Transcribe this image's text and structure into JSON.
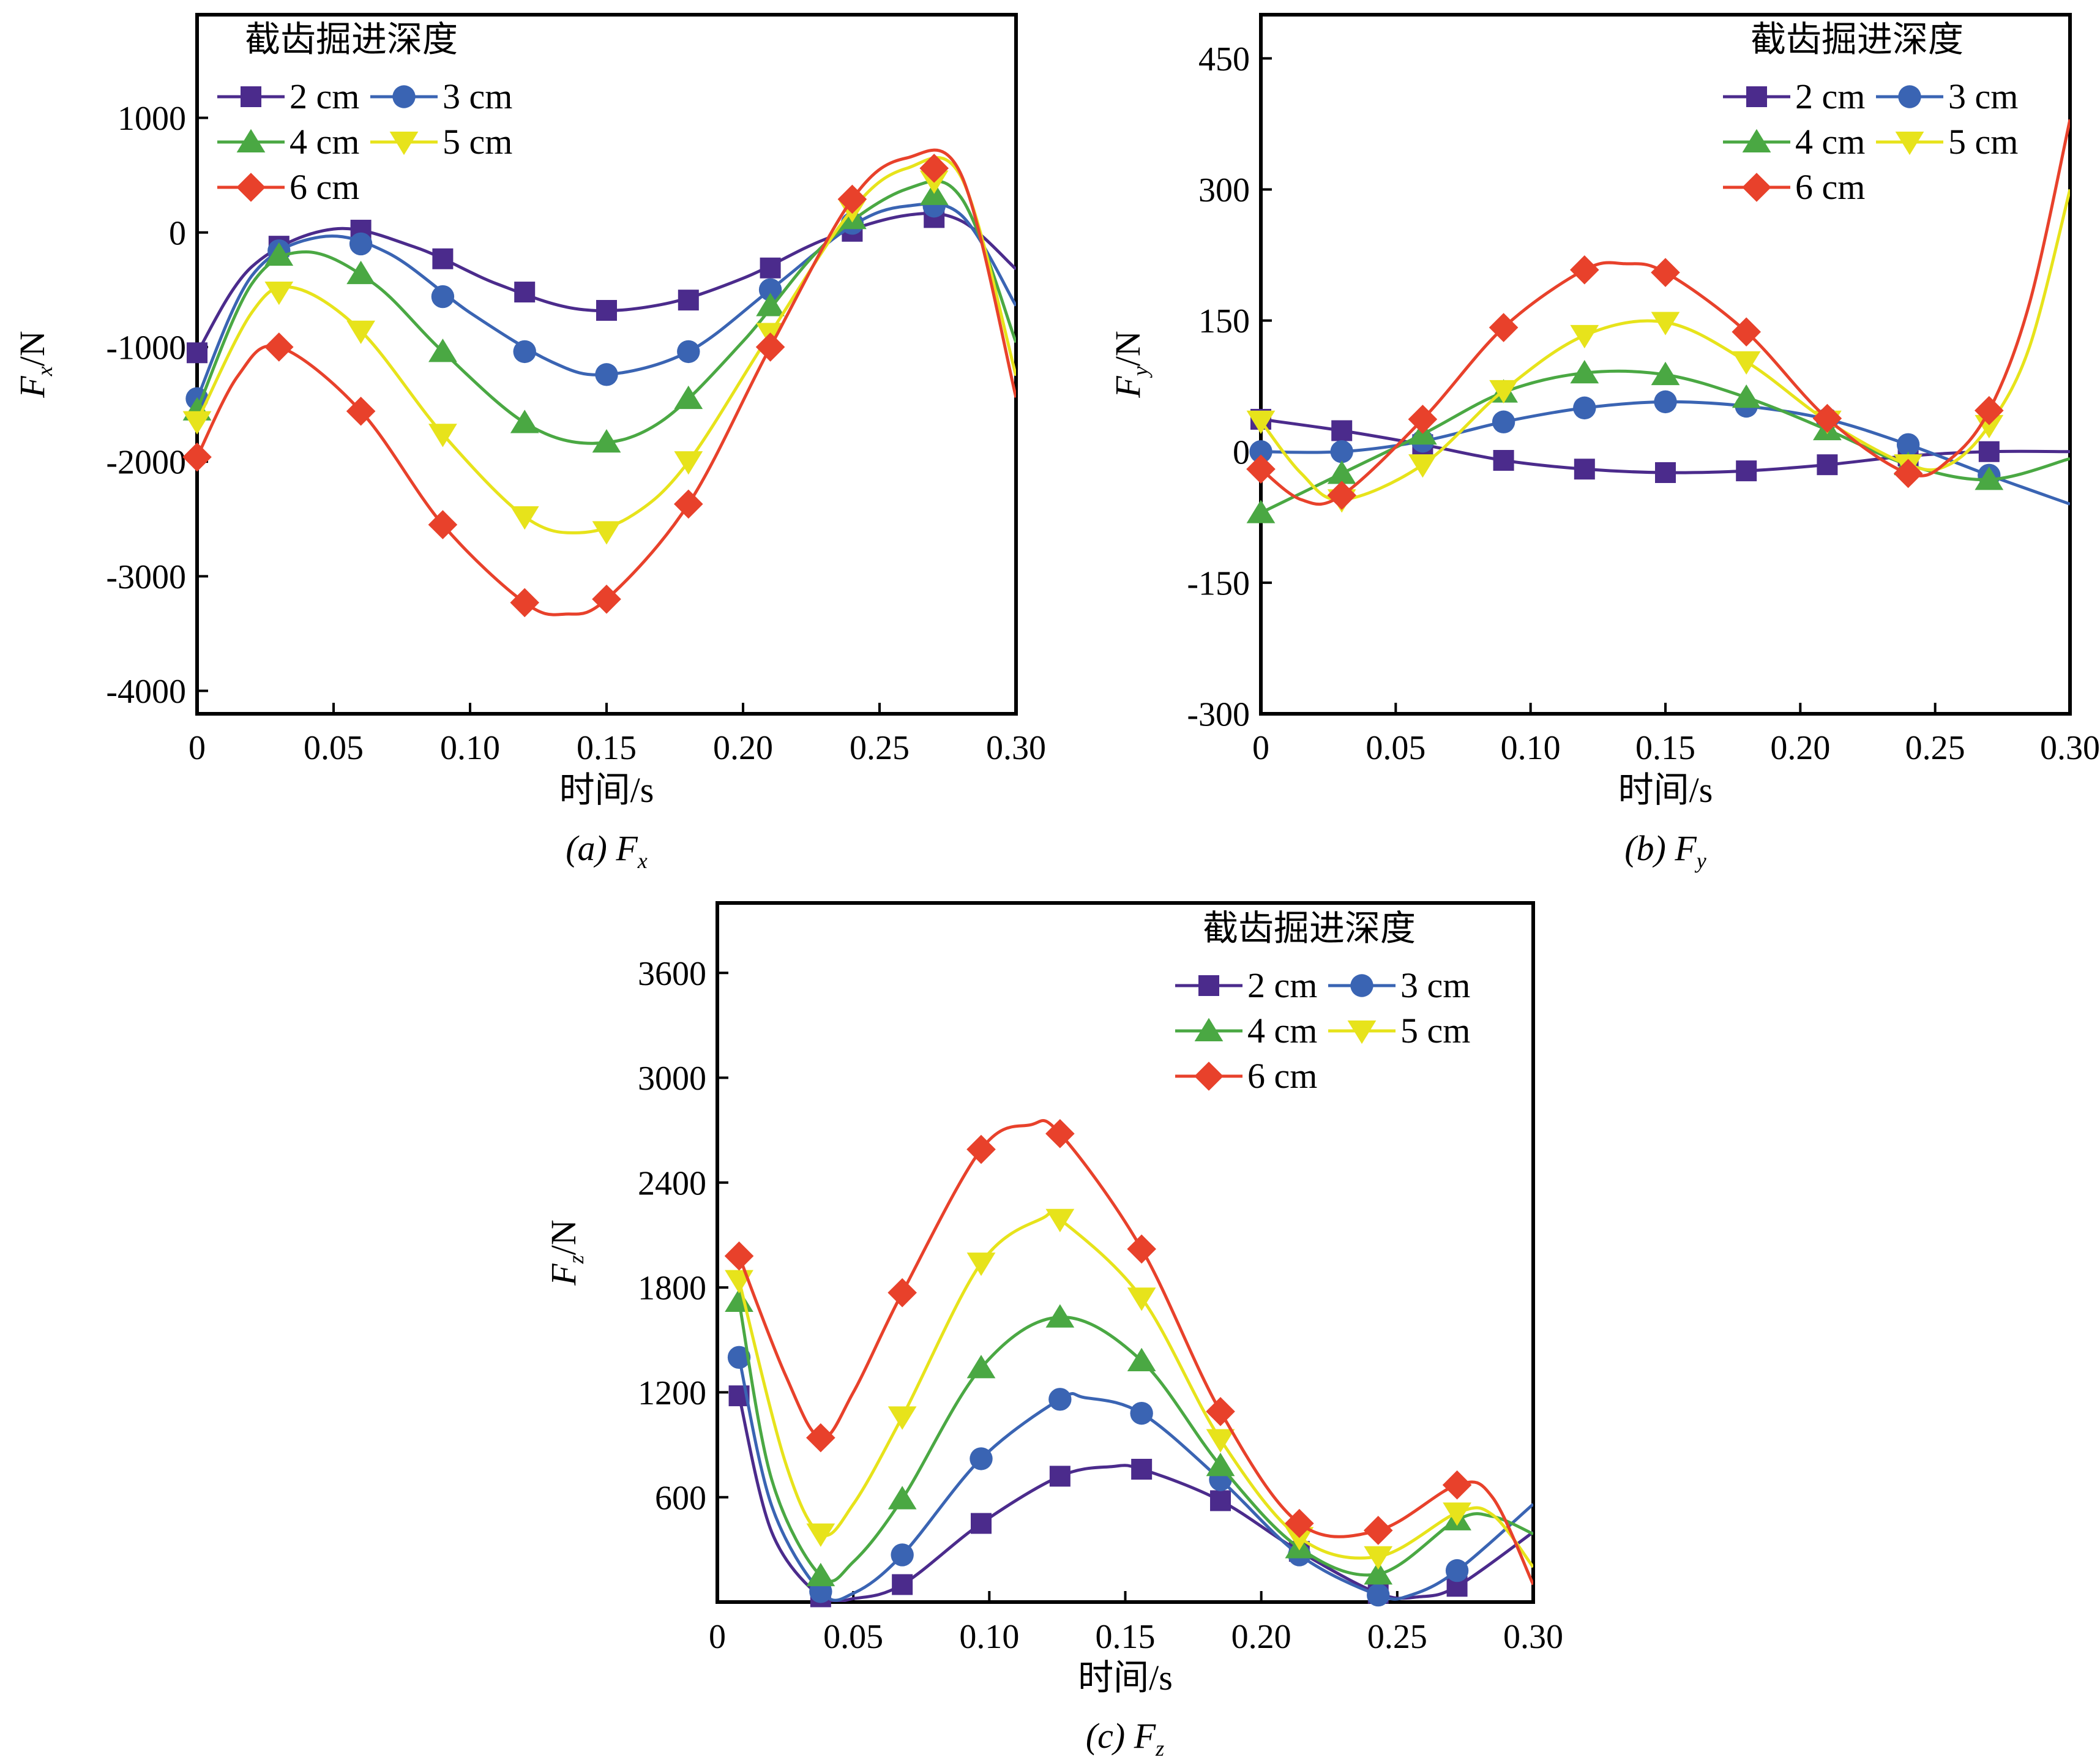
{
  "legend_title": "截齿掘进深度",
  "series_styles": [
    {
      "name": "2 cm",
      "color": "#4b2b8c",
      "marker": "square"
    },
    {
      "name": "3 cm",
      "color": "#3a64b3",
      "marker": "circle"
    },
    {
      "name": "4 cm",
      "color": "#4aa843",
      "marker": "triangle-up"
    },
    {
      "name": "5 cm",
      "color": "#e7e31b",
      "marker": "triangle-down"
    },
    {
      "name": "6 cm",
      "color": "#e8412b",
      "marker": "diamond"
    }
  ],
  "chart_data": [
    {
      "type": "line",
      "caption": "(a) F",
      "caption_sub": "x",
      "xlabel": "时间/s",
      "ylabel": "F",
      "ylabel_sub": "x",
      "ylabel_unit": "/N",
      "xlim": [
        0,
        0.3
      ],
      "ylim": [
        -4200,
        1900
      ],
      "xticks": [
        0,
        0.05,
        0.1,
        0.15,
        0.2,
        0.25,
        0.3
      ],
      "xtick_labels": [
        "0",
        "0.05",
        "0.10",
        "0.15",
        "0.20",
        "0.25",
        "0.30"
      ],
      "yticks": [
        -4000,
        -3000,
        -2000,
        -1000,
        0,
        1000
      ],
      "ytick_labels": [
        "-4000",
        "-3000",
        "-2000",
        "-1000",
        "0",
        "1000"
      ],
      "grid": false,
      "legend": "top-left",
      "series": [
        {
          "name": "2 cm",
          "x": [
            0,
            0.03,
            0.06,
            0.09,
            0.12,
            0.15,
            0.18,
            0.21,
            0.24,
            0.27
          ],
          "y": [
            -1050,
            -120,
            20,
            -230,
            -520,
            -680,
            -590,
            -310,
            10,
            130
          ],
          "curve": {
            "x": [
              0,
              0.02,
              0.05,
              0.08,
              0.11,
              0.14,
              0.17,
              0.2,
              0.23,
              0.26,
              0.28,
              0.3
            ],
            "y": [
              -1050,
              -300,
              30,
              -130,
              -450,
              -670,
              -630,
              -400,
              -60,
              150,
              100,
              -320
            ]
          }
        },
        {
          "name": "3 cm",
          "x": [
            0,
            0.03,
            0.06,
            0.09,
            0.12,
            0.15,
            0.18,
            0.21,
            0.24,
            0.27
          ],
          "y": [
            -1450,
            -160,
            -100,
            -560,
            -1040,
            -1240,
            -1040,
            -500,
            80,
            230
          ],
          "curve": {
            "x": [
              0,
              0.02,
              0.045,
              0.07,
              0.1,
              0.13,
              0.15,
              0.18,
              0.21,
              0.24,
              0.26,
              0.28,
              0.3
            ],
            "y": [
              -1450,
              -380,
              -40,
              -180,
              -700,
              -1130,
              -1240,
              -1040,
              -500,
              60,
              230,
              150,
              -640
            ]
          }
        },
        {
          "name": "4 cm",
          "x": [
            0,
            0.03,
            0.06,
            0.09,
            0.12,
            0.15,
            0.18,
            0.21,
            0.24,
            0.27
          ],
          "y": [
            -1550,
            -200,
            -360,
            -1040,
            -1660,
            -1830,
            -1450,
            -640,
            120,
            330
          ],
          "curve": {
            "x": [
              0,
              0.02,
              0.04,
              0.065,
              0.09,
              0.12,
              0.145,
              0.17,
              0.2,
              0.23,
              0.26,
              0.28,
              0.3
            ],
            "y": [
              -1550,
              -450,
              -170,
              -450,
              -1040,
              -1660,
              -1840,
              -1650,
              -950,
              -100,
              380,
              300,
              -960
            ]
          }
        },
        {
          "name": "5 cm",
          "x": [
            0,
            0.03,
            0.06,
            0.09,
            0.12,
            0.15,
            0.18,
            0.21,
            0.24,
            0.27
          ],
          "y": [
            -1650,
            -520,
            -860,
            -1760,
            -2480,
            -2610,
            -2000,
            -880,
            200,
            450
          ],
          "curve": {
            "x": [
              0,
              0.02,
              0.035,
              0.06,
              0.09,
              0.12,
              0.14,
              0.16,
              0.18,
              0.21,
              0.24,
              0.26,
              0.28,
              0.3
            ],
            "y": [
              -1650,
              -700,
              -480,
              -860,
              -1760,
              -2480,
              -2620,
              -2460,
              -2000,
              -880,
              200,
              560,
              480,
              -1250
            ]
          }
        },
        {
          "name": "6 cm",
          "x": [
            0,
            0.03,
            0.06,
            0.09,
            0.12,
            0.15,
            0.18,
            0.21,
            0.24,
            0.27
          ],
          "y": [
            -1960,
            -1000,
            -1560,
            -2550,
            -3230,
            -3200,
            -2370,
            -1000,
            290,
            560
          ],
          "curve": {
            "x": [
              0,
              0.015,
              0.03,
              0.06,
              0.09,
              0.12,
              0.135,
              0.15,
              0.18,
              0.21,
              0.24,
              0.26,
              0.28,
              0.3
            ],
            "y": [
              -1960,
              -1250,
              -1000,
              -1560,
              -2550,
              -3230,
              -3330,
              -3200,
              -2370,
              -1000,
              290,
              650,
              500,
              -1440
            ]
          }
        }
      ]
    },
    {
      "type": "line",
      "caption": "(b) F",
      "caption_sub": "y",
      "xlabel": "时间/s",
      "ylabel": "F",
      "ylabel_sub": "y",
      "ylabel_unit": "/N",
      "xlim": [
        0,
        0.3
      ],
      "ylim": [
        -300,
        500
      ],
      "xticks": [
        0,
        0.05,
        0.1,
        0.15,
        0.2,
        0.25,
        0.3
      ],
      "xtick_labels": [
        "0",
        "0.05",
        "0.10",
        "0.15",
        "0.20",
        "0.25",
        "0.30"
      ],
      "yticks": [
        -300,
        -150,
        0,
        150,
        300,
        450
      ],
      "ytick_labels": [
        "-300",
        "-150",
        "0",
        "150",
        "300",
        "450"
      ],
      "grid": false,
      "legend": "top-right",
      "series": [
        {
          "name": "2 cm",
          "x": [
            0,
            0.03,
            0.06,
            0.09,
            0.12,
            0.15,
            0.18,
            0.21,
            0.24,
            0.27
          ],
          "y": [
            37,
            24,
            8,
            -10,
            -20,
            -24,
            -22,
            -15,
            -5,
            0
          ],
          "curve": {
            "x": [
              0,
              0.03,
              0.06,
              0.09,
              0.12,
              0.15,
              0.18,
              0.21,
              0.24,
              0.27,
              0.3
            ],
            "y": [
              37,
              24,
              8,
              -10,
              -20,
              -24,
              -22,
              -15,
              -5,
              0,
              0
            ]
          }
        },
        {
          "name": "3 cm",
          "x": [
            0,
            0.03,
            0.06,
            0.09,
            0.12,
            0.15,
            0.18,
            0.21,
            0.24,
            0.27
          ],
          "y": [
            0,
            0,
            12,
            34,
            50,
            57,
            52,
            37,
            8,
            -27
          ],
          "curve": {
            "x": [
              0,
              0.03,
              0.06,
              0.09,
              0.12,
              0.15,
              0.18,
              0.21,
              0.24,
              0.27,
              0.3
            ],
            "y": [
              0,
              0,
              12,
              34,
              50,
              57,
              52,
              37,
              8,
              -27,
              -60
            ]
          }
        },
        {
          "name": "4 cm",
          "x": [
            0,
            0.03,
            0.06,
            0.09,
            0.12,
            0.15,
            0.18,
            0.21,
            0.24,
            0.27
          ],
          "y": [
            -70,
            -25,
            20,
            68,
            90,
            88,
            62,
            25,
            -15,
            -32
          ],
          "curve": {
            "x": [
              0,
              0.03,
              0.06,
              0.09,
              0.12,
              0.15,
              0.18,
              0.21,
              0.24,
              0.27,
              0.3
            ],
            "y": [
              -70,
              -25,
              20,
              68,
              90,
              88,
              62,
              25,
              -15,
              -32,
              -8
            ]
          }
        },
        {
          "name": "5 cm",
          "x": [
            0,
            0.03,
            0.06,
            0.09,
            0.12,
            0.15,
            0.18,
            0.21,
            0.24,
            0.27
          ],
          "y": [
            35,
            -55,
            -15,
            70,
            133,
            148,
            103,
            35,
            -15,
            30
          ],
          "curve": {
            "x": [
              0,
              0.015,
              0.03,
              0.06,
              0.09,
              0.12,
              0.15,
              0.18,
              0.21,
              0.24,
              0.255,
              0.27,
              0.285,
              0.3
            ],
            "y": [
              35,
              -25,
              -55,
              -15,
              70,
              133,
              148,
              103,
              35,
              -15,
              -15,
              30,
              120,
              300
            ]
          }
        },
        {
          "name": "6 cm",
          "x": [
            0,
            0.03,
            0.06,
            0.09,
            0.12,
            0.15,
            0.18,
            0.21,
            0.24,
            0.27
          ],
          "y": [
            -20,
            -50,
            37,
            142,
            208,
            205,
            137,
            38,
            -25,
            47
          ],
          "curve": {
            "x": [
              0,
              0.015,
              0.03,
              0.06,
              0.09,
              0.12,
              0.135,
              0.15,
              0.18,
              0.21,
              0.24,
              0.255,
              0.27,
              0.285,
              0.3
            ],
            "y": [
              -20,
              -55,
              -50,
              37,
              142,
              208,
              215,
              205,
              137,
              38,
              -25,
              -10,
              47,
              170,
              380
            ]
          }
        }
      ]
    },
    {
      "type": "line",
      "caption": "(c) F",
      "caption_sub": "z",
      "xlabel": "时间/s",
      "ylabel": "F",
      "ylabel_sub": "z",
      "ylabel_unit": "/N",
      "xlim": [
        0,
        0.3
      ],
      "ylim": [
        0,
        4000
      ],
      "xticks": [
        0,
        0.05,
        0.1,
        0.15,
        0.2,
        0.25,
        0.3
      ],
      "xtick_labels": [
        "0",
        "0.05",
        "0.10",
        "0.15",
        "0.20",
        "0.25",
        "0.30"
      ],
      "yticks": [
        600,
        1200,
        1800,
        2400,
        3000,
        3600
      ],
      "ytick_labels": [
        "600",
        "1200",
        "1800",
        "2400",
        "3000",
        "3600"
      ],
      "grid": false,
      "legend": "top-right",
      "series": [
        {
          "name": "2 cm",
          "x": [
            0.008,
            0.038,
            0.068,
            0.097,
            0.126,
            0.156,
            0.185,
            0.214,
            0.243,
            0.272
          ],
          "y": [
            1180,
            30,
            100,
            450,
            720,
            760,
            580,
            290,
            50,
            90
          ],
          "curve": {
            "x": [
              0.008,
              0.02,
              0.038,
              0.05,
              0.068,
              0.097,
              0.126,
              0.145,
              0.156,
              0.185,
              0.214,
              0.243,
              0.258,
              0.272,
              0.3
            ],
            "y": [
              1180,
              400,
              30,
              20,
              100,
              450,
              720,
              775,
              760,
              580,
              290,
              50,
              30,
              90,
              400
            ]
          }
        },
        {
          "name": "3 cm",
          "x": [
            0.008,
            0.038,
            0.068,
            0.097,
            0.126,
            0.156,
            0.185,
            0.214,
            0.243,
            0.272
          ],
          "y": [
            1400,
            60,
            270,
            820,
            1160,
            1080,
            700,
            270,
            40,
            180
          ],
          "curve": {
            "x": [
              0.008,
              0.02,
              0.038,
              0.05,
              0.068,
              0.097,
              0.126,
              0.135,
              0.156,
              0.185,
              0.214,
              0.243,
              0.255,
              0.272,
              0.3
            ],
            "y": [
              1400,
              550,
              60,
              50,
              270,
              820,
              1160,
              1170,
              1080,
              700,
              270,
              40,
              40,
              180,
              560
            ]
          }
        },
        {
          "name": "4 cm",
          "x": [
            0.008,
            0.038,
            0.068,
            0.097,
            0.126,
            0.156,
            0.185,
            0.214,
            0.243,
            0.272
          ],
          "y": [
            1720,
            150,
            590,
            1340,
            1630,
            1380,
            780,
            310,
            160,
            470
          ],
          "curve": {
            "x": [
              0.008,
              0.02,
              0.038,
              0.05,
              0.068,
              0.097,
              0.126,
              0.156,
              0.185,
              0.214,
              0.243,
              0.272,
              0.285,
              0.3
            ],
            "y": [
              1720,
              700,
              150,
              230,
              590,
              1340,
              1630,
              1380,
              780,
              310,
              160,
              470,
              490,
              390
            ]
          }
        },
        {
          "name": "5 cm",
          "x": [
            0.008,
            0.038,
            0.068,
            0.097,
            0.126,
            0.156,
            0.185,
            0.214,
            0.243,
            0.272
          ],
          "y": [
            1840,
            390,
            1060,
            1940,
            2190,
            1740,
            930,
            370,
            260,
            510
          ],
          "curve": {
            "x": [
              0.008,
              0.025,
              0.038,
              0.05,
              0.068,
              0.097,
              0.12,
              0.126,
              0.156,
              0.185,
              0.214,
              0.243,
              0.272,
              0.285,
              0.3
            ],
            "y": [
              1840,
              800,
              390,
              560,
              1060,
              1940,
              2200,
              2190,
              1740,
              930,
              370,
              260,
              510,
              500,
              200
            ]
          }
        },
        {
          "name": "6 cm",
          "x": [
            0.008,
            0.038,
            0.068,
            0.097,
            0.126,
            0.156,
            0.185,
            0.214,
            0.243,
            0.272
          ],
          "y": [
            1980,
            940,
            1770,
            2590,
            2680,
            2020,
            1090,
            450,
            410,
            670
          ],
          "curve": {
            "x": [
              0.008,
              0.025,
              0.038,
              0.05,
              0.068,
              0.097,
              0.115,
              0.126,
              0.156,
              0.185,
              0.214,
              0.243,
              0.272,
              0.285,
              0.3
            ],
            "y": [
              1980,
              1300,
              940,
              1200,
              1770,
              2590,
              2730,
              2680,
              2020,
              1090,
              450,
              410,
              670,
              600,
              100
            ]
          }
        }
      ]
    }
  ]
}
